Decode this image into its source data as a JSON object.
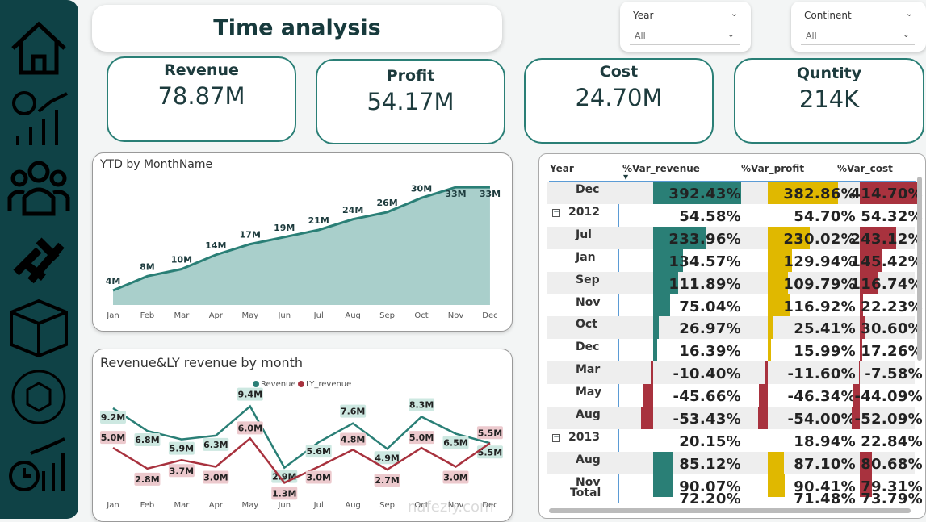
{
  "title": "Time analysis",
  "slicers": [
    {
      "label": "Year",
      "value": "All"
    },
    {
      "label": "Continent",
      "value": "All"
    }
  ],
  "kpis": [
    {
      "label": "Revenue",
      "value": "78.87M"
    },
    {
      "label": "Profit",
      "value": "54.17M"
    },
    {
      "label": "Cost",
      "value": "24.70M"
    },
    {
      "label": "Quntity",
      "value": "214K"
    }
  ],
  "sidebar": {
    "icons": [
      "home-icon",
      "revenue-chart-icon",
      "customers-icon",
      "dumbbell-icon",
      "package-icon",
      "product-cycle-icon",
      "time-chart-icon"
    ]
  },
  "colors": {
    "teal": "#2a7f76",
    "area": "#a9cfcb",
    "yellow": "#e0b800",
    "red": "#a8323e",
    "sidebar": "#0f4246"
  },
  "chart_data": [
    {
      "type": "area",
      "title": "YTD by MonthName",
      "categories": [
        "Jan",
        "Feb",
        "Mar",
        "Apr",
        "May",
        "Jun",
        "Jul",
        "Aug",
        "Sep",
        "Oct",
        "Nov",
        "Dec"
      ],
      "values": [
        4,
        8,
        10,
        14,
        17,
        19,
        21,
        24,
        26,
        30,
        33,
        33
      ],
      "labels": [
        "4M",
        "8M",
        "10M",
        "14M",
        "17M",
        "19M",
        "21M",
        "24M",
        "26M",
        "30M",
        "33M",
        "33M"
      ],
      "unit": "M"
    },
    {
      "type": "line",
      "title": "Revenue&LY revenue by month",
      "categories": [
        "Jan",
        "Feb",
        "Mar",
        "Apr",
        "May",
        "Jun",
        "Jul",
        "Aug",
        "Sep",
        "Oct",
        "Nov",
        "Dec"
      ],
      "legend": "top-center",
      "series": [
        {
          "name": "Revenue",
          "color": "#2a7f76",
          "values": [
            9.2,
            6.8,
            5.9,
            6.3,
            9.4,
            2.9,
            5.6,
            7.6,
            4.9,
            8.3,
            6.5,
            5.5
          ],
          "labels": [
            "9.2M",
            "6.8M",
            "5.9M",
            "6.3M",
            "9.4M",
            "2.9M",
            "5.6M",
            "7.6M",
            "4.9M",
            "8.3M",
            "6.5M",
            "5.5M"
          ]
        },
        {
          "name": "LY_revenue",
          "color": "#a8323e",
          "values": [
            5.0,
            2.8,
            3.7,
            3.0,
            6.0,
            1.3,
            3.0,
            4.8,
            2.7,
            5.0,
            3.0,
            5.5
          ],
          "labels": [
            "5.0M",
            "2.8M",
            "3.7M",
            "3.0M",
            "6.0M",
            "1.3M",
            "3.0M",
            "4.8M",
            "2.7M",
            "5.0M",
            "3.0M",
            "5.5M"
          ]
        }
      ]
    }
  ],
  "table": {
    "headers": [
      "Year",
      "%Var_revenue",
      "%Var_profit",
      "%Var_cost"
    ],
    "rows": [
      {
        "label": "Dec",
        "level": 1,
        "values": [
          392.43,
          382.86,
          414.7
        ],
        "text": [
          "392.43%",
          "382.86%",
          "414.70%"
        ]
      },
      {
        "label": "2012",
        "level": 0,
        "values": [
          54.58,
          54.7,
          54.32
        ],
        "text": [
          "54.58%",
          "54.70%",
          "54.32%"
        ]
      },
      {
        "label": "Jul",
        "level": 1,
        "values": [
          233.96,
          230.02,
          243.12
        ],
        "text": [
          "233.96%",
          "230.02%",
          "243.12%"
        ]
      },
      {
        "label": "Jan",
        "level": 1,
        "values": [
          134.57,
          129.94,
          145.42
        ],
        "text": [
          "134.57%",
          "129.94%",
          "145.42%"
        ]
      },
      {
        "label": "Sep",
        "level": 1,
        "values": [
          111.89,
          109.79,
          116.74
        ],
        "text": [
          "111.89%",
          "109.79%",
          "116.74%"
        ]
      },
      {
        "label": "Nov",
        "level": 1,
        "values": [
          75.04,
          116.92,
          22.23
        ],
        "text": [
          "75.04%",
          "116.92%",
          "22.23%"
        ]
      },
      {
        "label": "Oct",
        "level": 1,
        "values": [
          26.97,
          25.41,
          30.6
        ],
        "text": [
          "26.97%",
          "25.41%",
          "30.60%"
        ]
      },
      {
        "label": "Dec",
        "level": 1,
        "values": [
          16.39,
          15.99,
          17.26
        ],
        "text": [
          "16.39%",
          "15.99%",
          "17.26%"
        ]
      },
      {
        "label": "Mar",
        "level": 1,
        "values": [
          -10.4,
          -11.6,
          -7.58
        ],
        "text": [
          "-10.40%",
          "-11.60%",
          "-7.58%"
        ]
      },
      {
        "label": "May",
        "level": 1,
        "values": [
          -45.66,
          -46.34,
          -44.09
        ],
        "text": [
          "-45.66%",
          "-46.34%",
          "-44.09%"
        ]
      },
      {
        "label": "Aug",
        "level": 1,
        "values": [
          -53.43,
          -54.0,
          -52.09
        ],
        "text": [
          "-53.43%",
          "-54.00%",
          "-52.09%"
        ]
      },
      {
        "label": "2013",
        "level": 0,
        "values": [
          20.15,
          18.94,
          22.84
        ],
        "text": [
          "20.15%",
          "18.94%",
          "22.84%"
        ]
      },
      {
        "label": "Aug",
        "level": 1,
        "values": [
          85.12,
          87.1,
          80.68
        ],
        "text": [
          "85.12%",
          "87.10%",
          "80.68%"
        ]
      },
      {
        "label": "Nov",
        "level": 1,
        "values": [
          90.07,
          90.41,
          79.31
        ],
        "text": [
          "90.07%",
          "90.41%",
          "79.31%"
        ]
      }
    ],
    "total": {
      "label": "Total",
      "text": [
        "72.20%",
        "71.48%",
        "73.79%"
      ]
    }
  }
}
